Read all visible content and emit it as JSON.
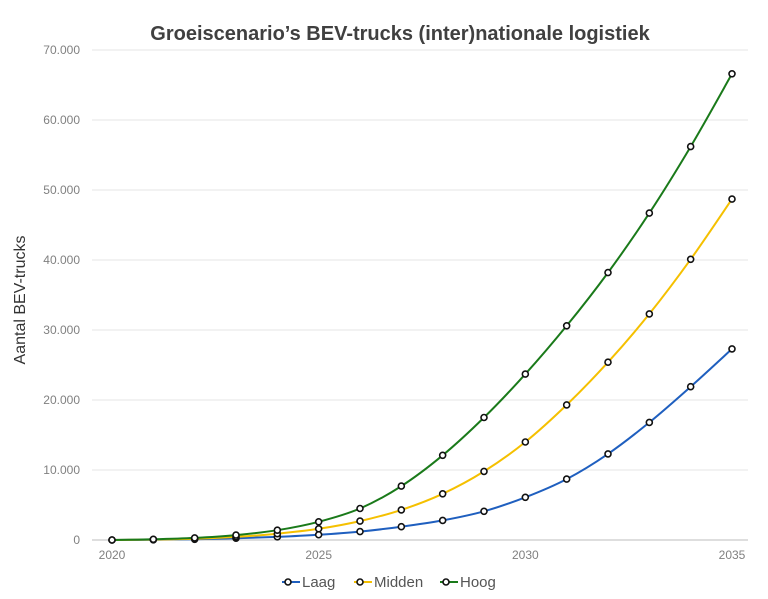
{
  "chart_data": {
    "type": "line",
    "title": "Groeiscenario’s BEV-trucks (inter)nationale logistiek",
    "xlabel": "",
    "ylabel": "Aantal BEV-trucks",
    "x": [
      2020,
      2021,
      2022,
      2023,
      2024,
      2025,
      2026,
      2027,
      2028,
      2029,
      2030,
      2031,
      2032,
      2033,
      2034,
      2035
    ],
    "x_ticks": [
      2020,
      2025,
      2030,
      2035
    ],
    "x_tick_labels": [
      "2020",
      "2025",
      "2030",
      "2035"
    ],
    "xlim": [
      2020,
      2035
    ],
    "ylim": [
      0,
      70000
    ],
    "y_ticks": [
      0,
      10000,
      20000,
      30000,
      40000,
      50000,
      60000,
      70000
    ],
    "y_tick_labels": [
      "0",
      "10.000",
      "20.000",
      "30.000",
      "40.000",
      "50.000",
      "60.000",
      "70.000"
    ],
    "grid": true,
    "legend_position": "bottom",
    "series": [
      {
        "name": "Laag",
        "color": "#1f5fbf",
        "values": [
          0,
          30,
          100,
          250,
          450,
          750,
          1200,
          1900,
          2800,
          4100,
          6100,
          8700,
          12300,
          16800,
          21900,
          27300
        ]
      },
      {
        "name": "Midden",
        "color": "#f5c000",
        "values": [
          0,
          60,
          180,
          450,
          900,
          1600,
          2700,
          4300,
          6600,
          9800,
          14000,
          19300,
          25400,
          32300,
          40100,
          48700
        ]
      },
      {
        "name": "Hoog",
        "color": "#1a7a1a",
        "values": [
          0,
          100,
          300,
          700,
          1400,
          2600,
          4500,
          7700,
          12100,
          17500,
          23700,
          30600,
          38200,
          46700,
          56200,
          66600
        ]
      }
    ]
  }
}
